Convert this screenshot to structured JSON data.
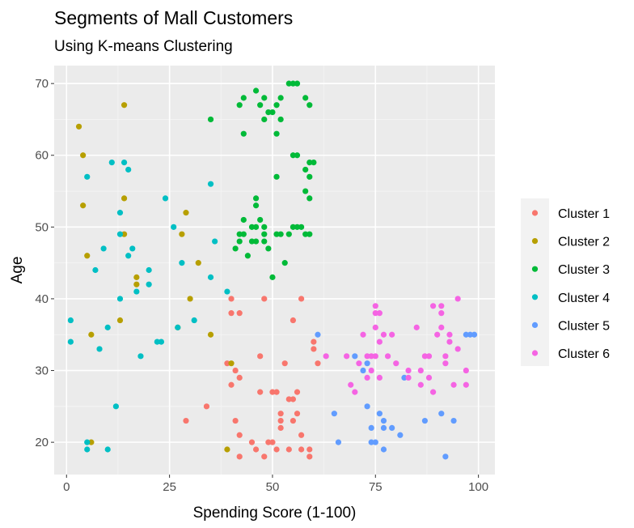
{
  "chart_data": {
    "type": "scatter",
    "title": "Segments of Mall Customers",
    "subtitle": "Using K-means Clustering",
    "xlabel": "Spending Score (1-100)",
    "ylabel": "Age",
    "xlim": [
      -3,
      104
    ],
    "ylim": [
      15.5,
      72.5
    ],
    "xticks": [
      0,
      25,
      50,
      75,
      100
    ],
    "yticks": [
      20,
      30,
      40,
      50,
      60,
      70
    ],
    "grid": true,
    "legend_position": "right",
    "series": [
      {
        "name": "Cluster 1",
        "color": "#F8766D",
        "points": [
          [
            40,
            40
          ],
          [
            40,
            38
          ],
          [
            42,
            38
          ],
          [
            48,
            40
          ],
          [
            57,
            40
          ],
          [
            55,
            37
          ],
          [
            39,
            31
          ],
          [
            40,
            28
          ],
          [
            41,
            30
          ],
          [
            42,
            29
          ],
          [
            41,
            23
          ],
          [
            42,
            21
          ],
          [
            42,
            18
          ],
          [
            46,
            19
          ],
          [
            47,
            32
          ],
          [
            47,
            27
          ],
          [
            48,
            18
          ],
          [
            49,
            20
          ],
          [
            50,
            27
          ],
          [
            51,
            27
          ],
          [
            51,
            19
          ],
          [
            52,
            24
          ],
          [
            52,
            23
          ],
          [
            52,
            22
          ],
          [
            53,
            31
          ],
          [
            54,
            26
          ],
          [
            54,
            19
          ],
          [
            55,
            26
          ],
          [
            55,
            23
          ],
          [
            56,
            27
          ],
          [
            56,
            24
          ],
          [
            57,
            21
          ],
          [
            57,
            19
          ],
          [
            59,
            18
          ],
          [
            59,
            19
          ],
          [
            60,
            34
          ],
          [
            60,
            33
          ],
          [
            61,
            31
          ],
          [
            50,
            20
          ],
          [
            34,
            25
          ],
          [
            29,
            23
          ],
          [
            45,
            20
          ]
        ]
      },
      {
        "name": "Cluster 2",
        "color": "#B79F00",
        "points": [
          [
            3,
            64
          ],
          [
            4,
            60
          ],
          [
            4,
            53
          ],
          [
            5,
            46
          ],
          [
            6,
            35
          ],
          [
            6,
            20
          ],
          [
            14,
            67
          ],
          [
            14,
            54
          ],
          [
            14,
            49
          ],
          [
            13,
            37
          ],
          [
            17,
            43
          ],
          [
            17,
            42
          ],
          [
            27,
            36
          ],
          [
            28,
            49
          ],
          [
            29,
            52
          ],
          [
            30,
            40
          ],
          [
            32,
            45
          ],
          [
            35,
            35
          ],
          [
            39,
            19
          ],
          [
            40,
            31
          ]
        ]
      },
      {
        "name": "Cluster 3",
        "color": "#00BA38",
        "points": [
          [
            42,
            67
          ],
          [
            43,
            68
          ],
          [
            43,
            63
          ],
          [
            46,
            69
          ],
          [
            47,
            67
          ],
          [
            48,
            68
          ],
          [
            48,
            65
          ],
          [
            49,
            66
          ],
          [
            50,
            66
          ],
          [
            51,
            67
          ],
          [
            51,
            63
          ],
          [
            52,
            65
          ],
          [
            52,
            68
          ],
          [
            54,
            70
          ],
          [
            55,
            70
          ],
          [
            56,
            70
          ],
          [
            58,
            68
          ],
          [
            59,
            67
          ],
          [
            35,
            65
          ],
          [
            55,
            60
          ],
          [
            56,
            60
          ],
          [
            58,
            58
          ],
          [
            59,
            59
          ],
          [
            59,
            57
          ],
          [
            60,
            59
          ],
          [
            51,
            57
          ],
          [
            41,
            47
          ],
          [
            42,
            49
          ],
          [
            42,
            48
          ],
          [
            43,
            51
          ],
          [
            43,
            49
          ],
          [
            44,
            46
          ],
          [
            45,
            50
          ],
          [
            46,
            50
          ],
          [
            46,
            48
          ],
          [
            46,
            54
          ],
          [
            46,
            53
          ],
          [
            47,
            51
          ],
          [
            48,
            48
          ],
          [
            49,
            47
          ],
          [
            50,
            43
          ],
          [
            48,
            50
          ],
          [
            52,
            49
          ],
          [
            53,
            45
          ],
          [
            54,
            49
          ],
          [
            56,
            50
          ],
          [
            57,
            50
          ],
          [
            58,
            49
          ],
          [
            59,
            49
          ],
          [
            58,
            55
          ],
          [
            59,
            54
          ],
          [
            55,
            50
          ],
          [
            45,
            48
          ],
          [
            48,
            49
          ],
          [
            51,
            49
          ]
        ]
      },
      {
        "name": "Cluster 4",
        "color": "#00BFC4",
        "points": [
          [
            1,
            37
          ],
          [
            1,
            34
          ],
          [
            5,
            20
          ],
          [
            5,
            19
          ],
          [
            5,
            57
          ],
          [
            7,
            44
          ],
          [
            8,
            33
          ],
          [
            9,
            47
          ],
          [
            10,
            36
          ],
          [
            10,
            19
          ],
          [
            11,
            59
          ],
          [
            12,
            25
          ],
          [
            13,
            40
          ],
          [
            13,
            52
          ],
          [
            13,
            49
          ],
          [
            14,
            59
          ],
          [
            15,
            58
          ],
          [
            15,
            46
          ],
          [
            16,
            47
          ],
          [
            17,
            41
          ],
          [
            18,
            32
          ],
          [
            20,
            44
          ],
          [
            20,
            42
          ],
          [
            22,
            34
          ],
          [
            23,
            34
          ],
          [
            24,
            54
          ],
          [
            26,
            50
          ],
          [
            27,
            36
          ],
          [
            28,
            45
          ],
          [
            31,
            37
          ],
          [
            35,
            56
          ],
          [
            35,
            43
          ],
          [
            36,
            48
          ],
          [
            39,
            41
          ]
        ]
      },
      {
        "name": "Cluster 5",
        "color": "#619CFF",
        "points": [
          [
            61,
            35
          ],
          [
            65,
            24
          ],
          [
            66,
            20
          ],
          [
            70,
            32
          ],
          [
            72,
            30
          ],
          [
            73,
            31
          ],
          [
            73,
            25
          ],
          [
            74,
            22
          ],
          [
            74,
            20
          ],
          [
            75,
            20
          ],
          [
            76,
            24
          ],
          [
            77,
            22
          ],
          [
            77,
            23
          ],
          [
            77,
            19
          ],
          [
            79,
            22
          ],
          [
            81,
            21
          ],
          [
            82,
            29
          ],
          [
            87,
            23
          ],
          [
            91,
            24
          ],
          [
            92,
            18
          ],
          [
            94,
            23
          ],
          [
            97,
            35
          ],
          [
            98,
            35
          ],
          [
            99,
            35
          ]
        ]
      },
      {
        "name": "Cluster 6",
        "color": "#F564E3",
        "points": [
          [
            63,
            32
          ],
          [
            68,
            32
          ],
          [
            69,
            28
          ],
          [
            70,
            27
          ],
          [
            71,
            31
          ],
          [
            72,
            35
          ],
          [
            73,
            29
          ],
          [
            73,
            32
          ],
          [
            74,
            32
          ],
          [
            74,
            30
          ],
          [
            75,
            39
          ],
          [
            75,
            38
          ],
          [
            75,
            36
          ],
          [
            75,
            32
          ],
          [
            76,
            38
          ],
          [
            76,
            34
          ],
          [
            76,
            29
          ],
          [
            77,
            35
          ],
          [
            78,
            32
          ],
          [
            79,
            35
          ],
          [
            80,
            31
          ],
          [
            83,
            30
          ],
          [
            83,
            29
          ],
          [
            85,
            36
          ],
          [
            86,
            30
          ],
          [
            87,
            32
          ],
          [
            88,
            32
          ],
          [
            88,
            29
          ],
          [
            89,
            39
          ],
          [
            89,
            27
          ],
          [
            90,
            35
          ],
          [
            91,
            39
          ],
          [
            91,
            38
          ],
          [
            91,
            36
          ],
          [
            92,
            32
          ],
          [
            92,
            31
          ],
          [
            93,
            35
          ],
          [
            93,
            34
          ],
          [
            94,
            28
          ],
          [
            95,
            40
          ],
          [
            95,
            33
          ],
          [
            97,
            30
          ],
          [
            97,
            28
          ],
          [
            86,
            28
          ]
        ]
      }
    ]
  }
}
